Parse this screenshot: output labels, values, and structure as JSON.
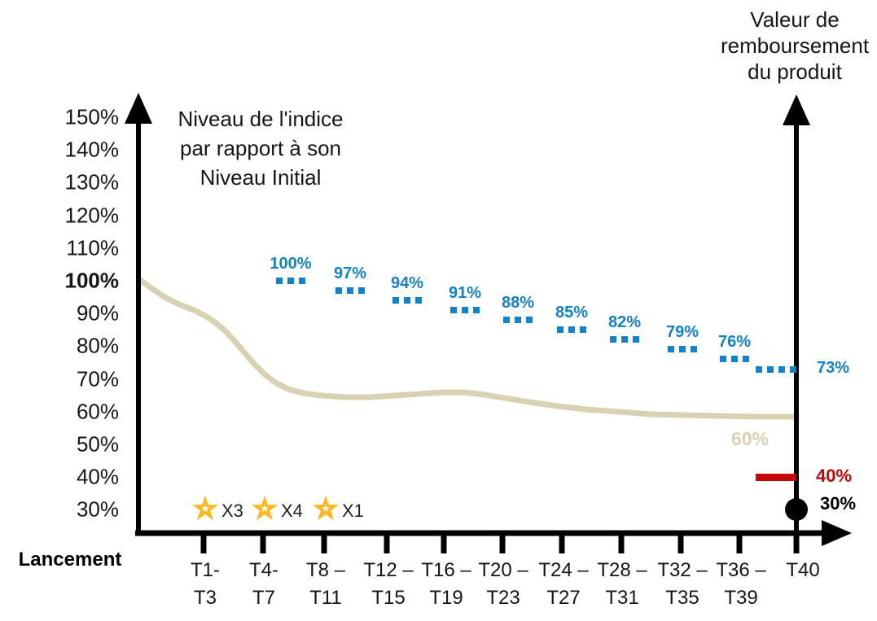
{
  "chart_data": {
    "type": "line",
    "title": "Niveau de l'indice par rapport à son Niveau Initial",
    "index_title_lines": [
      "Niveau de l'indice",
      "par rapport à son",
      "Niveau Initial"
    ],
    "right_axis_title_lines": [
      "Valeur de",
      "remboursement",
      "du produit"
    ],
    "x_origin_label": "Lancement",
    "y_axis": {
      "tick_labels": [
        "150%",
        "140%",
        "130%",
        "120%",
        "110%",
        "100%",
        "90%",
        "80%",
        "70%",
        "60%",
        "50%",
        "40%",
        "30%"
      ],
      "tick_values": [
        150,
        140,
        130,
        120,
        110,
        100,
        90,
        80,
        70,
        60,
        50,
        40,
        30
      ],
      "emphasized_tick": "100%",
      "ylim": [
        30,
        150
      ]
    },
    "x_axis": {
      "categories": [
        "T1-T3",
        "T4-T7",
        "T8-T11",
        "T12-T15",
        "T16-T19",
        "T20-T23",
        "T24-T27",
        "T28-T31",
        "T32-T35",
        "T36-T39",
        "T40"
      ],
      "labels_top": [
        "T1-",
        "T4-",
        "T8 –",
        "T12 –",
        "T16 –",
        "T20 –",
        "T24 –",
        "T28 –",
        "T32 –",
        "T36 –",
        "T40"
      ],
      "labels_bottom": [
        "T3",
        "T7",
        "T11",
        "T15",
        "T19",
        "T23",
        "T27",
        "T31",
        "T35",
        "T39",
        ""
      ]
    },
    "barrier_series": {
      "name": "barriere-degressive-marqueurs-pointilles",
      "color": "#1382C8",
      "points": [
        {
          "category": "T4-T7",
          "value_pct": 100,
          "label": "100%"
        },
        {
          "category": "T8-T11",
          "value_pct": 97,
          "label": "97%"
        },
        {
          "category": "T12-T15",
          "value_pct": 94,
          "label": "94%"
        },
        {
          "category": "T16-T19",
          "value_pct": 91,
          "label": "91%"
        },
        {
          "category": "T20-T23",
          "value_pct": 88,
          "label": "88%"
        },
        {
          "category": "T24-T27",
          "value_pct": 85,
          "label": "85%"
        },
        {
          "category": "T28-T31",
          "value_pct": 82,
          "label": "82%"
        },
        {
          "category": "T32-T35",
          "value_pct": 79,
          "label": "79%"
        },
        {
          "category": "T36-T39",
          "value_pct": 76,
          "label": "76%"
        },
        {
          "category": "T40",
          "value_pct": 73,
          "label": "73%",
          "label_side": "right"
        }
      ]
    },
    "index_curve": {
      "name": "niveau-de-l-indice",
      "color": "#D8D1B2",
      "final_label": "60%",
      "approx_values_pct": [
        {
          "category": "Lancement",
          "value_pct": 100
        },
        {
          "category": "T1-T3",
          "value_pct": 88
        },
        {
          "category": "T4-T7",
          "value_pct": 67
        },
        {
          "category": "T8-T11",
          "value_pct": 66
        },
        {
          "category": "T12-T15",
          "value_pct": 66
        },
        {
          "category": "T16-T19",
          "value_pct": 66.5
        },
        {
          "category": "T20-T23",
          "value_pct": 64
        },
        {
          "category": "T24-T27",
          "value_pct": 62.5
        },
        {
          "category": "T28-T31",
          "value_pct": 61.5
        },
        {
          "category": "T32-T35",
          "value_pct": 60.5
        },
        {
          "category": "T36-T39",
          "value_pct": 60
        },
        {
          "category": "T40",
          "value_pct": 60
        }
      ]
    },
    "red_level": {
      "label": "40%",
      "value_pct": 40,
      "color": "#C50507"
    },
    "final_value_dot": {
      "label": "30%",
      "value_pct": 30,
      "color": "#000000"
    },
    "stars": [
      {
        "category": "T1-T3",
        "label": "X3"
      },
      {
        "category": "T4-T7",
        "label": "X4"
      },
      {
        "category": "T8-T11",
        "label": "X1"
      }
    ],
    "star_color": "#FFB81C",
    "legend_position": "none",
    "grid": false
  }
}
